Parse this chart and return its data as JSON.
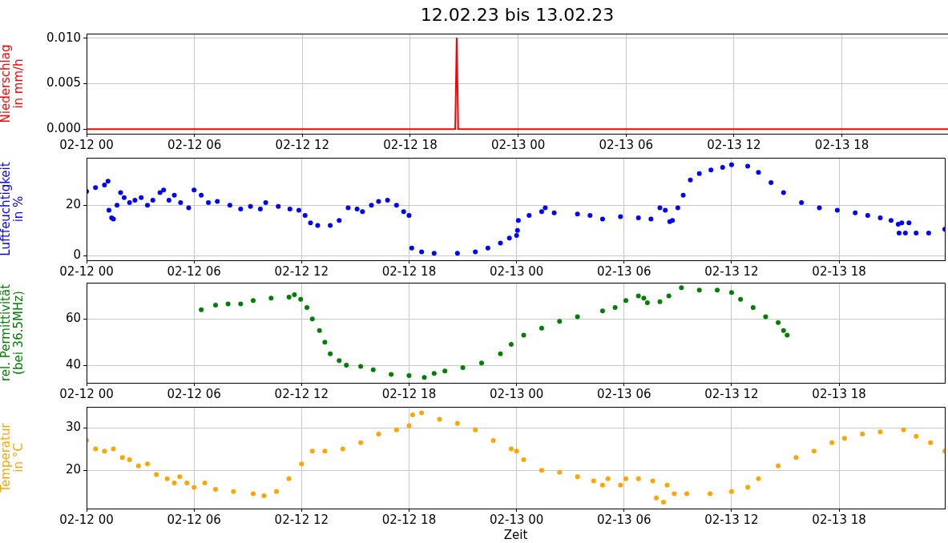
{
  "chart_data": [
    {
      "type": "line",
      "title": "12.02.23 bis 13.02.23",
      "ylabel": "Niederschlag\nin mm/h",
      "xlim": [
        "--02-12T00:00",
        "--02-13T23:54"
      ],
      "xticks": [
        {
          "value": "--02-12T00:00",
          "label": "02-12 00"
        },
        {
          "value": "--02-12T06:00",
          "label": "02-12 06"
        },
        {
          "value": "--02-12T12:00",
          "label": "02-12 12"
        },
        {
          "value": "--02-12T18:00",
          "label": "02-12 18"
        },
        {
          "value": "--02-13T00:00",
          "label": "02-13 00"
        },
        {
          "value": "--02-13T06:00",
          "label": "02-13 06"
        },
        {
          "value": "--02-13T12:00",
          "label": "02-13 12"
        },
        {
          "value": "--02-13T18:00",
          "label": "02-13 18"
        }
      ],
      "ylim": [
        -0.0005,
        0.0105
      ],
      "yticks": [
        {
          "value": 0,
          "label": "0.000"
        },
        {
          "value": 0.005,
          "label": "0.005"
        },
        {
          "value": 0.01,
          "label": "0.010"
        }
      ],
      "grid": true,
      "marker": "none",
      "line_style": "solid",
      "series": [
        {
          "color": "#ff0000",
          "x": [
            "--02-12T00:00",
            "--02-12T20:30",
            "--02-12T20:35",
            "--02-12T20:40",
            "--02-13T23:54"
          ],
          "values": [
            0,
            0,
            0.01,
            0,
            0
          ]
        }
      ]
    },
    {
      "type": "scatter",
      "ylabel": "Luftfeuchtigkeit\nin %",
      "xlim": [
        "--02-12T00:00",
        "--02-13T23:54"
      ],
      "xticks": [
        {
          "value": "--02-12T00:00",
          "label": "02-12 00"
        },
        {
          "value": "--02-12T06:00",
          "label": "02-12 06"
        },
        {
          "value": "--02-12T12:00",
          "label": "02-12 12"
        },
        {
          "value": "--02-12T18:00",
          "label": "02-12 18"
        },
        {
          "value": "--02-13T00:00",
          "label": "02-13 00"
        },
        {
          "value": "--02-13T06:00",
          "label": "02-13 06"
        },
        {
          "value": "--02-13T12:00",
          "label": "02-13 12"
        },
        {
          "value": "--02-13T18:00",
          "label": "02-13 18"
        }
      ],
      "ylim": [
        -1.8,
        38.8
      ],
      "yticks": [
        0,
        20
      ],
      "grid": true,
      "marker": "circle",
      "series": [
        {
          "color": "#0000ff",
          "x": [
            "--02-12T00:00",
            "--02-12T00:30",
            "--02-12T01:00",
            "--02-12T01:12",
            "--02-12T01:15",
            "--02-12T01:24",
            "--02-12T01:30",
            "--02-12T01:42",
            "--02-12T01:54",
            "--02-12T02:06",
            "--02-12T02:24",
            "--02-12T02:42",
            "--02-12T03:03",
            "--02-12T03:24",
            "--02-12T03:42",
            "--02-12T04:06",
            "--02-12T04:18",
            "--02-12T04:36",
            "--02-12T04:54",
            "--02-12T05:15",
            "--02-12T05:42",
            "--02-12T06:00",
            "--02-12T06:24",
            "--02-12T06:48",
            "--02-12T07:18",
            "--02-12T08:00",
            "--02-12T08:36",
            "--02-12T09:09",
            "--02-12T09:42",
            "--02-12T10:00",
            "--02-12T10:42",
            "--02-12T11:21",
            "--02-12T11:51",
            "--02-12T12:12",
            "--02-12T12:30",
            "--02-12T12:54",
            "--02-12T13:36",
            "--02-12T14:06",
            "--02-12T14:36",
            "--02-12T15:06",
            "--02-12T15:24",
            "--02-12T15:54",
            "--02-12T16:18",
            "--02-12T16:48",
            "--02-12T17:18",
            "--02-12T17:42",
            "--02-12T18:00",
            "--02-12T18:09",
            "--02-12T18:42",
            "--02-12T19:24",
            "--02-12T20:42",
            "--02-12T21:42",
            "--02-12T22:24",
            "--02-12T23:06",
            "--02-12T23:36",
            "--02-13T00:00",
            "--02-13T00:03",
            "--02-13T00:06",
            "--02-13T00:42",
            "--02-13T01:24",
            "--02-13T01:36",
            "--02-13T02:06",
            "--02-13T03:24",
            "--02-13T04:06",
            "--02-13T04:48",
            "--02-13T05:48",
            "--02-13T06:48",
            "--02-13T07:30",
            "--02-13T08:00",
            "--02-13T08:18",
            "--02-13T08:33",
            "--02-13T08:42",
            "--02-13T09:00",
            "--02-13T09:18",
            "--02-13T09:42",
            "--02-13T10:12",
            "--02-13T10:51",
            "--02-13T11:30",
            "--02-13T12:00",
            "--02-13T12:54",
            "--02-13T13:30",
            "--02-13T14:12",
            "--02-13T14:54",
            "--02-13T15:54",
            "--02-13T16:54",
            "--02-13T17:54",
            "--02-13T18:54",
            "--02-13T19:36",
            "--02-13T20:18",
            "--02-13T20:54",
            "--02-13T21:18",
            "--02-13T21:21",
            "--02-13T21:30",
            "--02-13T21:42",
            "--02-13T21:54",
            "--02-13T22:18",
            "--02-13T23:00",
            "--02-13T23:54"
          ],
          "values": [
            25.5,
            27,
            28,
            29.5,
            18,
            15,
            14.5,
            20,
            25,
            23,
            21,
            22,
            23,
            20,
            22,
            25,
            26,
            22,
            24,
            21,
            19,
            26,
            24,
            21,
            21.5,
            20,
            18.5,
            19.5,
            18.5,
            21,
            19.5,
            18.5,
            18,
            16,
            13,
            12,
            12,
            14,
            19,
            18.5,
            17.5,
            20,
            21.5,
            22,
            20,
            17.5,
            16,
            3,
            1.5,
            1,
            1,
            1.5,
            3,
            5,
            7,
            8,
            10,
            14,
            16,
            17.5,
            19,
            17,
            16.5,
            16,
            14.5,
            15.5,
            15,
            14.5,
            19,
            18,
            13.5,
            14,
            19,
            24,
            30,
            32.5,
            34,
            35,
            36,
            35.5,
            33,
            29,
            25,
            21,
            19,
            18,
            17,
            16,
            15,
            14,
            12.5,
            9,
            13,
            9,
            13,
            9,
            9,
            10.5
          ]
        }
      ]
    },
    {
      "type": "scatter",
      "ylabel": "rel. Permittivität\n(bei 36.5MHz)",
      "xlim": [
        "--02-12T00:00",
        "--02-13T23:54"
      ],
      "xticks": [
        {
          "value": "--02-12T00:00",
          "label": "02-12 00"
        },
        {
          "value": "--02-12T06:00",
          "label": "02-12 06"
        },
        {
          "value": "--02-12T12:00",
          "label": "02-12 12"
        },
        {
          "value": "--02-12T18:00",
          "label": "02-12 18"
        },
        {
          "value": "--02-13T00:00",
          "label": "02-13 00"
        },
        {
          "value": "--02-13T06:00",
          "label": "02-13 06"
        },
        {
          "value": "--02-13T12:00",
          "label": "02-13 12"
        },
        {
          "value": "--02-13T18:00",
          "label": "02-13 18"
        }
      ],
      "ylim": [
        32.4,
        75.7
      ],
      "yticks": [
        40,
        60
      ],
      "grid": true,
      "marker": "circle",
      "series": [
        {
          "color": "#008000",
          "x": [
            "--02-12T06:24",
            "--02-12T07:12",
            "--02-12T07:54",
            "--02-12T08:36",
            "--02-12T09:18",
            "--02-12T10:18",
            "--02-12T11:18",
            "--02-12T11:36",
            "--02-12T11:57",
            "--02-12T12:18",
            "--02-12T12:36",
            "--02-12T13:00",
            "--02-12T13:18",
            "--02-12T13:36",
            "--02-12T14:06",
            "--02-12T14:30",
            "--02-12T15:18",
            "--02-12T16:00",
            "--02-12T17:00",
            "--02-12T18:00",
            "--02-12T18:51",
            "--02-12T19:24",
            "--02-12T20:00",
            "--02-12T21:00",
            "--02-12T22:03",
            "--02-12T23:06",
            "--02-12T23:42",
            "--02-13T00:24",
            "--02-13T01:24",
            "--02-13T02:24",
            "--02-13T03:24",
            "--02-13T04:48",
            "--02-13T05:30",
            "--02-13T06:06",
            "--02-13T06:48",
            "--02-13T07:06",
            "--02-13T07:18",
            "--02-13T08:00",
            "--02-13T08:30",
            "--02-13T09:12",
            "--02-13T10:12",
            "--02-13T11:12",
            "--02-13T12:00",
            "--02-13T12:30",
            "--02-13T13:12",
            "--02-13T13:54",
            "--02-13T14:36",
            "--02-13T14:54",
            "--02-13T15:06"
          ],
          "values": [
            64,
            66,
            66.5,
            66.5,
            68,
            69,
            69.5,
            70.5,
            68.5,
            65,
            60,
            55,
            50,
            45,
            42,
            40,
            39.5,
            38,
            36,
            35.5,
            34.7,
            36.5,
            37.5,
            39,
            41,
            45,
            49,
            53,
            56,
            59,
            61,
            63.5,
            65,
            68,
            70,
            69,
            67,
            67.5,
            70,
            73.5,
            72.5,
            72.5,
            71.5,
            68.5,
            65,
            61,
            58.5,
            55,
            53
          ]
        }
      ]
    },
    {
      "type": "scatter",
      "xlabel": "Zeit",
      "ylabel": "Temperatur\nin °C",
      "xlim": [
        "--02-12T00:00",
        "--02-13T23:54"
      ],
      "xticks": [
        {
          "value": "--02-12T00:00",
          "label": "02-12 00"
        },
        {
          "value": "--02-12T06:00",
          "label": "02-12 06"
        },
        {
          "value": "--02-12T12:00",
          "label": "02-12 12"
        },
        {
          "value": "--02-12T18:00",
          "label": "02-12 18"
        },
        {
          "value": "--02-13T00:00",
          "label": "02-13 00"
        },
        {
          "value": "--02-13T06:00",
          "label": "02-13 06"
        },
        {
          "value": "--02-13T12:00",
          "label": "02-13 12"
        },
        {
          "value": "--02-13T18:00",
          "label": "02-13 18"
        }
      ],
      "ylim": [
        11,
        34.9
      ],
      "yticks": [
        20,
        30
      ],
      "grid": true,
      "marker": "circle",
      "series": [
        {
          "color": "#ffa500",
          "x": [
            "--02-12T00:00",
            "--02-12T00:30",
            "--02-12T01:00",
            "--02-12T01:30",
            "--02-12T02:00",
            "--02-12T02:24",
            "--02-12T02:54",
            "--02-12T03:24",
            "--02-12T03:54",
            "--02-12T04:30",
            "--02-12T04:54",
            "--02-12T05:12",
            "--02-12T05:36",
            "--02-12T06:00",
            "--02-12T06:36",
            "--02-12T07:12",
            "--02-12T08:12",
            "--02-12T09:18",
            "--02-12T09:54",
            "--02-12T10:36",
            "--02-12T11:18",
            "--02-12T12:00",
            "--02-12T12:36",
            "--02-12T13:18",
            "--02-12T14:18",
            "--02-12T15:18",
            "--02-12T16:18",
            "--02-12T17:18",
            "--02-12T18:00",
            "--02-12T18:12",
            "--02-12T18:42",
            "--02-12T19:42",
            "--02-12T20:42",
            "--02-12T21:42",
            "--02-12T22:42",
            "--02-12T23:42",
            "--02-13T00:00",
            "--02-13T00:24",
            "--02-13T01:24",
            "--02-13T02:24",
            "--02-13T03:24",
            "--02-13T04:18",
            "--02-13T04:48",
            "--02-13T05:06",
            "--02-13T05:48",
            "--02-13T06:06",
            "--02-13T06:48",
            "--02-13T07:36",
            "--02-13T07:48",
            "--02-13T08:12",
            "--02-13T08:24",
            "--02-13T08:48",
            "--02-13T09:30",
            "--02-13T10:48",
            "--02-13T12:00",
            "--02-13T12:54",
            "--02-13T13:30",
            "--02-13T14:36",
            "--02-13T15:36",
            "--02-13T16:36",
            "--02-13T17:36",
            "--02-13T18:18",
            "--02-13T19:18",
            "--02-13T20:18",
            "--02-13T21:36",
            "--02-13T22:18",
            "--02-13T23:06",
            "--02-13T23:54"
          ],
          "values": [
            27,
            25,
            24.5,
            25,
            23,
            22.5,
            21,
            21.5,
            19,
            18,
            17,
            18.5,
            17,
            16,
            17,
            15.5,
            15,
            14.5,
            14,
            15,
            18,
            21.5,
            24.5,
            24.5,
            25,
            26.5,
            28.5,
            29.5,
            30.5,
            33,
            33.5,
            32,
            31,
            29.5,
            27,
            25,
            24.5,
            22.5,
            20,
            19.5,
            18.5,
            17.5,
            16.5,
            18,
            16.5,
            18,
            18,
            17.5,
            13.5,
            12.5,
            16.5,
            14.5,
            14.5,
            14.5,
            15,
            16,
            18,
            21,
            23,
            24.5,
            26.5,
            27.5,
            28.5,
            29,
            29.5,
            28,
            26.5,
            24.5
          ]
        }
      ]
    }
  ]
}
